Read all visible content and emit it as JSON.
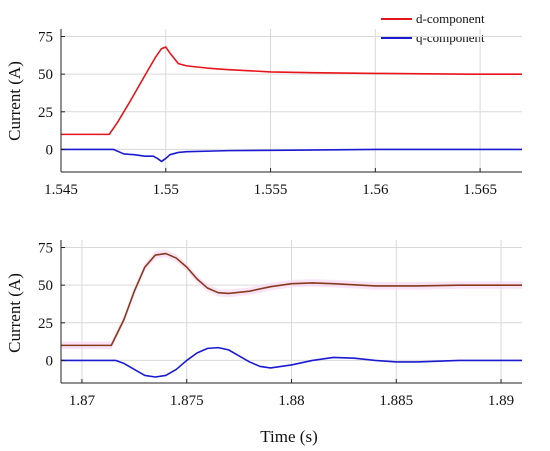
{
  "colors": {
    "d": "#e8141b",
    "q": "#1a1ad2",
    "d_bottom": "#8a3a1c",
    "grid": "#d9d9d9",
    "shade": "#f7d8f3"
  },
  "legend": {
    "position": "top-right",
    "entries": [
      {
        "label": "d-component",
        "color": "#e8141b"
      },
      {
        "label": "q-component",
        "color": "#1a1ad2"
      }
    ]
  },
  "chart_data": [
    {
      "type": "line",
      "xlabel": "",
      "ylabel": "Current (A)",
      "xlim": [
        1.545,
        1.567
      ],
      "ylim": [
        -15,
        80
      ],
      "xticks": [
        1.545,
        1.55,
        1.555,
        1.56,
        1.565
      ],
      "xtick_labels": [
        "1.545",
        "1.55",
        "1.555",
        "1.56",
        "1.565"
      ],
      "yticks": [
        0,
        25,
        50,
        75
      ],
      "ytick_labels": [
        "0",
        "25",
        "50",
        "75"
      ],
      "grid": true,
      "series": [
        {
          "name": "d-component",
          "x": [
            1.545,
            1.5473,
            1.5477,
            1.5483,
            1.549,
            1.5495,
            1.5498,
            1.55,
            1.5502,
            1.5506,
            1.551,
            1.552,
            1.553,
            1.555,
            1.557,
            1.56,
            1.5645,
            1.567
          ],
          "y": [
            10,
            10,
            18,
            32,
            49,
            61,
            67,
            68,
            64,
            57,
            55.5,
            54,
            53,
            51.5,
            51,
            50.5,
            50,
            50
          ]
        },
        {
          "name": "q-component",
          "x": [
            1.545,
            1.5475,
            1.548,
            1.5485,
            1.549,
            1.5494,
            1.5496,
            1.5498,
            1.55,
            1.5502,
            1.5506,
            1.551,
            1.553,
            1.556,
            1.56,
            1.567
          ],
          "y": [
            0,
            0,
            -3,
            -3.5,
            -4.5,
            -4.5,
            -6,
            -8,
            -6,
            -3.5,
            -2,
            -1.5,
            -0.8,
            -0.5,
            0,
            0
          ]
        }
      ]
    },
    {
      "type": "line",
      "xlabel": "Time (s)",
      "ylabel": "Current (A)",
      "xlim": [
        1.869,
        1.891
      ],
      "ylim": [
        -15,
        80
      ],
      "xticks": [
        1.87,
        1.875,
        1.88,
        1.885,
        1.89
      ],
      "xtick_labels": [
        "1.87",
        "1.875",
        "1.88",
        "1.885",
        "1.89"
      ],
      "yticks": [
        0,
        25,
        50,
        75
      ],
      "ytick_labels": [
        "0",
        "25",
        "50",
        "75"
      ],
      "grid": true,
      "series": [
        {
          "name": "d-component",
          "x": [
            1.869,
            1.8714,
            1.872,
            1.8725,
            1.873,
            1.8735,
            1.874,
            1.8745,
            1.875,
            1.8755,
            1.876,
            1.8765,
            1.877,
            1.878,
            1.879,
            1.88,
            1.881,
            1.882,
            1.884,
            1.886,
            1.888,
            1.891
          ],
          "y": [
            10,
            10,
            27,
            46,
            62,
            70,
            71,
            68,
            62,
            54,
            48,
            45,
            44.5,
            46,
            49,
            51,
            51.5,
            51,
            49.5,
            49.5,
            50,
            50
          ]
        },
        {
          "name": "q-component",
          "x": [
            1.869,
            1.8716,
            1.872,
            1.8725,
            1.873,
            1.8735,
            1.874,
            1.8745,
            1.875,
            1.8755,
            1.876,
            1.8765,
            1.877,
            1.8775,
            1.878,
            1.8785,
            1.879,
            1.88,
            1.881,
            1.882,
            1.883,
            1.884,
            1.885,
            1.886,
            1.888,
            1.891
          ],
          "y": [
            0,
            0,
            -2,
            -6,
            -10,
            -11,
            -10,
            -6,
            0,
            5,
            8,
            8.5,
            7,
            3,
            -1,
            -4,
            -5,
            -3,
            0,
            2,
            1.5,
            0,
            -1,
            -1,
            0,
            0
          ]
        }
      ]
    }
  ]
}
